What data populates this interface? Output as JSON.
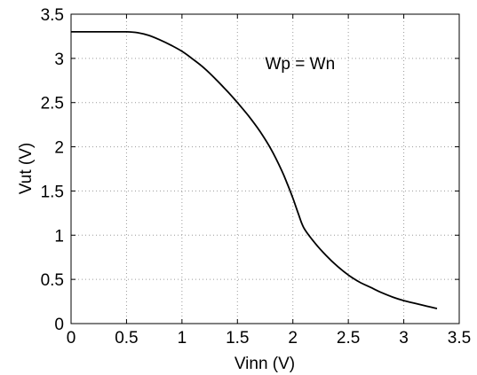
{
  "chart_data": {
    "type": "line",
    "title": "",
    "xlabel": "Vinn (V)",
    "ylabel": "Vut (V)",
    "xlim": [
      0,
      3.5
    ],
    "ylim": [
      0,
      3.5
    ],
    "grid": true,
    "x_ticks": [
      0,
      0.5,
      1,
      1.5,
      2,
      2.5,
      3,
      3.5
    ],
    "x_tick_labels": [
      "0",
      "0.5",
      "1",
      "1.5",
      "2",
      "2.5",
      "3",
      "3.5"
    ],
    "y_ticks": [
      0,
      0.5,
      1,
      1.5,
      2,
      2.5,
      3,
      3.5
    ],
    "y_tick_labels": [
      "0",
      "0.5",
      "1",
      "1.5",
      "2",
      "2.5",
      "3",
      "3.5"
    ],
    "annotations": [
      {
        "text": "Wp = Wn",
        "x": 1.75,
        "y": 2.95
      }
    ],
    "series": [
      {
        "color": "#000000",
        "x": [
          0,
          0.3,
          0.5,
          0.6,
          0.7,
          0.8,
          0.9,
          1.0,
          1.1,
          1.2,
          1.3,
          1.4,
          1.5,
          1.6,
          1.7,
          1.8,
          1.9,
          1.95,
          2.0,
          2.05,
          2.1,
          2.2,
          2.3,
          2.4,
          2.5,
          2.6,
          2.7,
          2.8,
          2.9,
          3.0,
          3.1,
          3.2,
          3.3
        ],
        "y": [
          3.3,
          3.3,
          3.3,
          3.29,
          3.26,
          3.21,
          3.15,
          3.08,
          2.99,
          2.89,
          2.77,
          2.64,
          2.5,
          2.35,
          2.18,
          1.98,
          1.73,
          1.58,
          1.42,
          1.24,
          1.08,
          0.91,
          0.77,
          0.65,
          0.55,
          0.47,
          0.41,
          0.35,
          0.3,
          0.26,
          0.23,
          0.2,
          0.17
        ]
      }
    ]
  }
}
